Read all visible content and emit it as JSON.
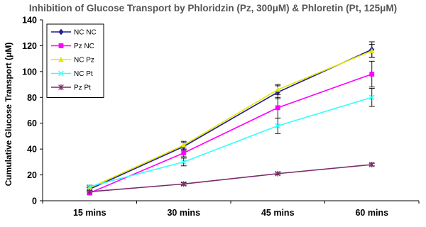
{
  "chart_data": {
    "type": "line",
    "title": "Inhibition of Glucose Transport by Phloridzin (Pz, 300μM) & Phloretin (Pt, 125μM)",
    "ylabel": "Cumulative Glucose Transport (μM)",
    "xlabel": "",
    "categories": [
      "15 mins",
      "30 mins",
      "45 mins",
      "60 mins"
    ],
    "ylim": [
      0,
      140
    ],
    "yticks": [
      0,
      20,
      40,
      60,
      80,
      100,
      120,
      140
    ],
    "grid": false,
    "legend": "top-left",
    "series": [
      {
        "name": "NC NC",
        "values": [
          9,
          42,
          84,
          117
        ],
        "errors": [
          1,
          3,
          5,
          6
        ],
        "color": "#1f1f8f",
        "marker": "diamond"
      },
      {
        "name": "Pz NC",
        "values": [
          6,
          37,
          72,
          98
        ],
        "errors": [
          1,
          3,
          8,
          10
        ],
        "color": "#ff00ff",
        "marker": "square"
      },
      {
        "name": "NC Pz",
        "values": [
          10,
          43,
          86,
          116
        ],
        "errors": [
          1,
          3,
          4,
          5
        ],
        "color": "#e6e600",
        "marker": "triangle"
      },
      {
        "name": "NC Pt",
        "values": [
          11,
          30,
          58,
          80
        ],
        "errors": [
          1,
          3,
          6,
          7
        ],
        "color": "#33ffff",
        "marker": "x"
      },
      {
        "name": "Pz Pt",
        "values": [
          7,
          13,
          21,
          28
        ],
        "errors": [
          0.5,
          1,
          1,
          1
        ],
        "color": "#7b2a6b",
        "marker": "star"
      }
    ]
  }
}
